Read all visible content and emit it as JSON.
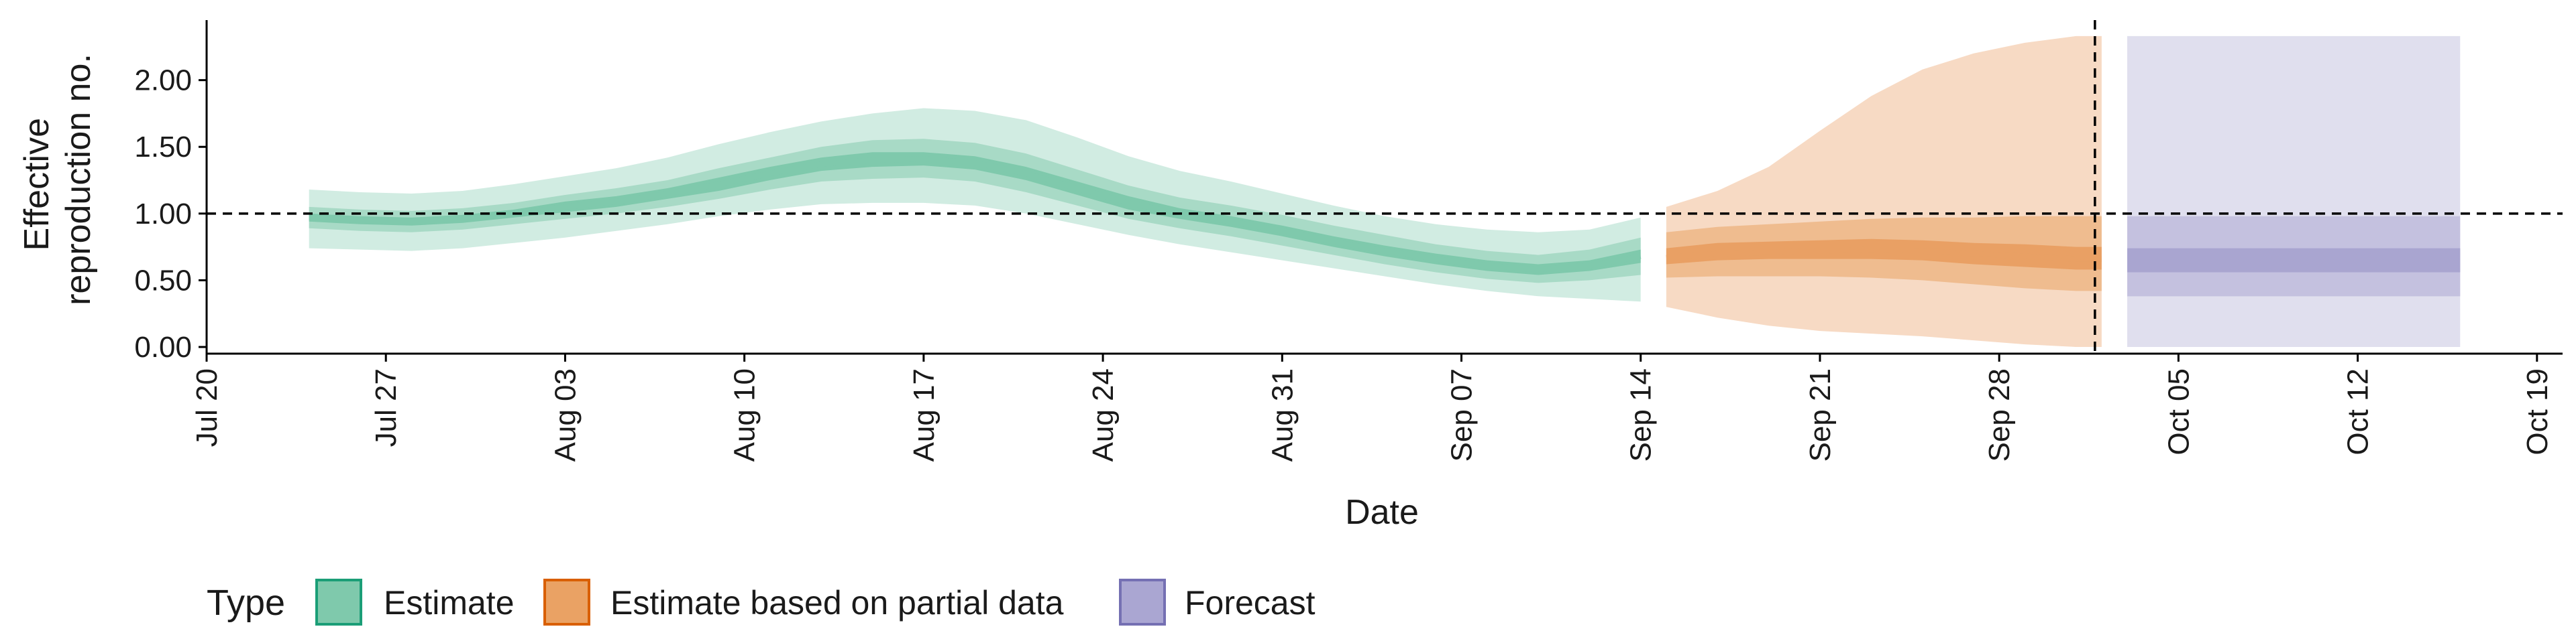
{
  "chart_data": {
    "type": "area",
    "title": "",
    "xlabel": "Date",
    "ylabel_lines": [
      "Effective",
      "reproduction no."
    ],
    "x_ticks": [
      "Jul 20",
      "Jul 27",
      "Aug 03",
      "Aug 10",
      "Aug 17",
      "Aug 24",
      "Aug 31",
      "Sep 07",
      "Sep 14",
      "Sep 21",
      "Sep 28",
      "Oct 05",
      "Oct 12",
      "Oct 19"
    ],
    "y_ticks": [
      "0.00",
      "0.50",
      "1.00",
      "1.50",
      "2.00"
    ],
    "xlim": [
      "2020-07-20",
      "2020-10-20"
    ],
    "ylim": [
      -0.05,
      2.45
    ],
    "reference_line_y": 1.0,
    "forecast_start": "2020-10-02",
    "grid": false,
    "legend": {
      "title": "Type",
      "position": "bottom-left",
      "items": [
        {
          "label": "Estimate",
          "fill": "#7fc9ac",
          "stroke": "#1b9e77"
        },
        {
          "label": "Estimate based on partial data",
          "fill": "#eaa264",
          "stroke": "#d95f02"
        },
        {
          "label": "Forecast",
          "fill": "#aaa6d2",
          "stroke": "#7570b3"
        }
      ]
    },
    "series": [
      {
        "name": "Estimate",
        "color": "#1b9e77",
        "dates": [
          "2020-07-24",
          "2020-07-26",
          "2020-07-28",
          "2020-07-30",
          "2020-08-01",
          "2020-08-03",
          "2020-08-05",
          "2020-08-07",
          "2020-08-09",
          "2020-08-11",
          "2020-08-13",
          "2020-08-15",
          "2020-08-17",
          "2020-08-19",
          "2020-08-21",
          "2020-08-23",
          "2020-08-25",
          "2020-08-27",
          "2020-08-29",
          "2020-08-31",
          "2020-09-02",
          "2020-09-04",
          "2020-09-06",
          "2020-09-08",
          "2020-09-10",
          "2020-09-12",
          "2020-09-14"
        ],
        "median": [
          0.97,
          0.95,
          0.94,
          0.96,
          1.0,
          1.05,
          1.09,
          1.15,
          1.22,
          1.3,
          1.37,
          1.4,
          1.41,
          1.38,
          1.3,
          1.19,
          1.08,
          1.0,
          0.94,
          0.87,
          0.79,
          0.72,
          0.66,
          0.61,
          0.58,
          0.61,
          0.68
        ],
        "ci20": [
          [
            0.94,
            1.0
          ],
          [
            0.92,
            0.98
          ],
          [
            0.91,
            0.97
          ],
          [
            0.93,
            0.99
          ],
          [
            0.97,
            1.03
          ],
          [
            1.01,
            1.09
          ],
          [
            1.05,
            1.13
          ],
          [
            1.11,
            1.19
          ],
          [
            1.17,
            1.27
          ],
          [
            1.25,
            1.35
          ],
          [
            1.32,
            1.42
          ],
          [
            1.35,
            1.46
          ],
          [
            1.36,
            1.46
          ],
          [
            1.33,
            1.43
          ],
          [
            1.25,
            1.35
          ],
          [
            1.14,
            1.24
          ],
          [
            1.03,
            1.13
          ],
          [
            0.96,
            1.04
          ],
          [
            0.9,
            0.98
          ],
          [
            0.83,
            0.91
          ],
          [
            0.75,
            0.83
          ],
          [
            0.68,
            0.76
          ],
          [
            0.62,
            0.7
          ],
          [
            0.57,
            0.65
          ],
          [
            0.54,
            0.62
          ],
          [
            0.57,
            0.65
          ],
          [
            0.63,
            0.73
          ]
        ],
        "ci50": [
          [
            0.89,
            1.05
          ],
          [
            0.87,
            1.03
          ],
          [
            0.86,
            1.02
          ],
          [
            0.88,
            1.04
          ],
          [
            0.92,
            1.08
          ],
          [
            0.96,
            1.14
          ],
          [
            1.0,
            1.19
          ],
          [
            1.05,
            1.25
          ],
          [
            1.11,
            1.34
          ],
          [
            1.18,
            1.42
          ],
          [
            1.24,
            1.5
          ],
          [
            1.26,
            1.55
          ],
          [
            1.27,
            1.56
          ],
          [
            1.24,
            1.53
          ],
          [
            1.16,
            1.45
          ],
          [
            1.06,
            1.33
          ],
          [
            0.96,
            1.21
          ],
          [
            0.89,
            1.12
          ],
          [
            0.83,
            1.06
          ],
          [
            0.76,
            0.99
          ],
          [
            0.69,
            0.91
          ],
          [
            0.62,
            0.84
          ],
          [
            0.56,
            0.77
          ],
          [
            0.51,
            0.72
          ],
          [
            0.48,
            0.69
          ],
          [
            0.5,
            0.73
          ],
          [
            0.54,
            0.82
          ]
        ],
        "ci90": [
          [
            0.74,
            1.18
          ],
          [
            0.73,
            1.16
          ],
          [
            0.72,
            1.15
          ],
          [
            0.74,
            1.17
          ],
          [
            0.78,
            1.22
          ],
          [
            0.82,
            1.28
          ],
          [
            0.87,
            1.34
          ],
          [
            0.92,
            1.42
          ],
          [
            0.98,
            1.52
          ],
          [
            1.03,
            1.61
          ],
          [
            1.07,
            1.69
          ],
          [
            1.08,
            1.75
          ],
          [
            1.08,
            1.79
          ],
          [
            1.06,
            1.77
          ],
          [
            1.0,
            1.7
          ],
          [
            0.92,
            1.57
          ],
          [
            0.84,
            1.43
          ],
          [
            0.77,
            1.32
          ],
          [
            0.71,
            1.24
          ],
          [
            0.65,
            1.15
          ],
          [
            0.59,
            1.06
          ],
          [
            0.53,
            0.98
          ],
          [
            0.47,
            0.92
          ],
          [
            0.42,
            0.88
          ],
          [
            0.38,
            0.86
          ],
          [
            0.36,
            0.88
          ],
          [
            0.34,
            0.97
          ]
        ]
      },
      {
        "name": "Estimate based on partial data",
        "color": "#d95f02",
        "dates": [
          "2020-09-15",
          "2020-09-17",
          "2020-09-19",
          "2020-09-21",
          "2020-09-23",
          "2020-09-25",
          "2020-09-27",
          "2020-09-29",
          "2020-10-01",
          "2020-10-02"
        ],
        "median": [
          0.67,
          0.7,
          0.71,
          0.72,
          0.73,
          0.72,
          0.7,
          0.68,
          0.66,
          0.66
        ],
        "ci20": [
          [
            0.62,
            0.74
          ],
          [
            0.65,
            0.78
          ],
          [
            0.66,
            0.79
          ],
          [
            0.66,
            0.8
          ],
          [
            0.66,
            0.81
          ],
          [
            0.65,
            0.8
          ],
          [
            0.62,
            0.78
          ],
          [
            0.6,
            0.77
          ],
          [
            0.58,
            0.75
          ],
          [
            0.58,
            0.75
          ]
        ],
        "ci50": [
          [
            0.52,
            0.86
          ],
          [
            0.53,
            0.9
          ],
          [
            0.53,
            0.92
          ],
          [
            0.53,
            0.94
          ],
          [
            0.52,
            0.96
          ],
          [
            0.5,
            0.97
          ],
          [
            0.47,
            0.97
          ],
          [
            0.44,
            0.98
          ],
          [
            0.42,
            0.98
          ],
          [
            0.42,
            0.98
          ]
        ],
        "ci90": [
          [
            0.3,
            1.05
          ],
          [
            0.22,
            1.17
          ],
          [
            0.16,
            1.35
          ],
          [
            0.12,
            1.62
          ],
          [
            0.1,
            1.88
          ],
          [
            0.08,
            2.08
          ],
          [
            0.05,
            2.2
          ],
          [
            0.02,
            2.28
          ],
          [
            0.0,
            2.33
          ],
          [
            0.0,
            2.33
          ]
        ]
      },
      {
        "name": "Forecast",
        "color": "#7570b3",
        "dates": [
          "2020-10-03",
          "2020-10-16"
        ],
        "median": [
          0.64,
          0.64
        ],
        "ci20": [
          [
            0.56,
            0.74
          ],
          [
            0.56,
            0.74
          ]
        ],
        "ci50": [
          [
            0.38,
            0.98
          ],
          [
            0.38,
            0.98
          ]
        ],
        "ci90": [
          [
            0.0,
            2.33
          ],
          [
            0.0,
            2.33
          ]
        ]
      }
    ]
  }
}
